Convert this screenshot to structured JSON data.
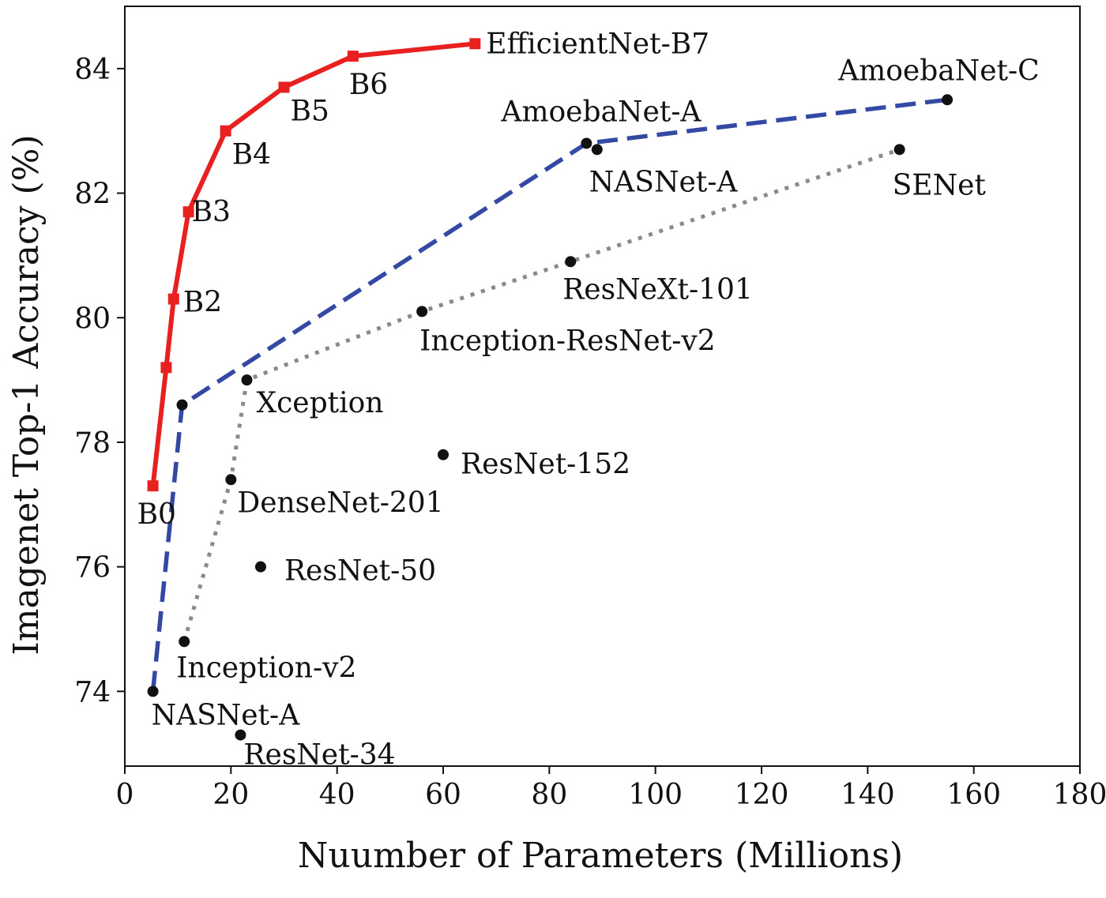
{
  "chart_data": {
    "type": "line",
    "title": "",
    "xlabel": "Nuumber of Parameters (Millions)",
    "ylabel": "Imagenet Top-1 Accuracy (%)",
    "xlim": [
      0,
      180
    ],
    "ylim": [
      72.8,
      85.0
    ],
    "xticks": [
      0,
      20,
      40,
      60,
      80,
      100,
      120,
      140,
      160,
      180
    ],
    "yticks": [
      74,
      76,
      78,
      80,
      82,
      84
    ],
    "grid": false,
    "legend": "none",
    "series": [
      {
        "key": "efficientnet",
        "style": "solid",
        "marker": "square",
        "color": "#e8201f",
        "points": [
          {
            "x": 5.3,
            "y": 77.3,
            "label": "B0"
          },
          {
            "x": 7.8,
            "y": 79.2,
            "label": ""
          },
          {
            "x": 9.2,
            "y": 80.3,
            "label": "B2"
          },
          {
            "x": 12,
            "y": 81.7,
            "label": "B3"
          },
          {
            "x": 19,
            "y": 83.0,
            "label": "B4"
          },
          {
            "x": 30,
            "y": 83.7,
            "label": "B5"
          },
          {
            "x": 43,
            "y": 84.2,
            "label": "B6"
          },
          {
            "x": 66,
            "y": 84.4,
            "label": "EfficientNet-B7"
          }
        ]
      },
      {
        "key": "nas",
        "style": "dashed",
        "marker": "circle",
        "color": "#3349a4",
        "points": [
          {
            "x": 5.3,
            "y": 74.0,
            "label": "NASNet-A"
          },
          {
            "x": 10.8,
            "y": 78.6,
            "label": ""
          },
          {
            "x": 87,
            "y": 82.8,
            "label": "AmoebaNet-A"
          },
          {
            "x": 155,
            "y": 83.5,
            "label": "AmoebaNet-C"
          }
        ]
      },
      {
        "key": "handcrafted",
        "style": "dotted",
        "marker": "circle",
        "color": "#8a8a8a",
        "points": [
          {
            "x": 11.2,
            "y": 74.8,
            "label": "Inception-v2"
          },
          {
            "x": 20,
            "y": 77.4,
            "label": "DenseNet-201"
          },
          {
            "x": 23,
            "y": 79.0,
            "label": "Xception"
          },
          {
            "x": 56,
            "y": 80.1,
            "label": "Inception-ResNet-v2"
          },
          {
            "x": 84,
            "y": 80.9,
            "label": "ResNeXt-101"
          },
          {
            "x": 146,
            "y": 82.7,
            "label": "SENet"
          }
        ]
      }
    ],
    "standalone_points": [
      {
        "x": 89,
        "y": 82.7,
        "label": "NASNet-A"
      },
      {
        "x": 60,
        "y": 77.8,
        "label": "ResNet-152"
      },
      {
        "x": 25.6,
        "y": 76.0,
        "label": "ResNet-50"
      },
      {
        "x": 21.8,
        "y": 73.3,
        "label": "ResNet-34"
      }
    ]
  }
}
